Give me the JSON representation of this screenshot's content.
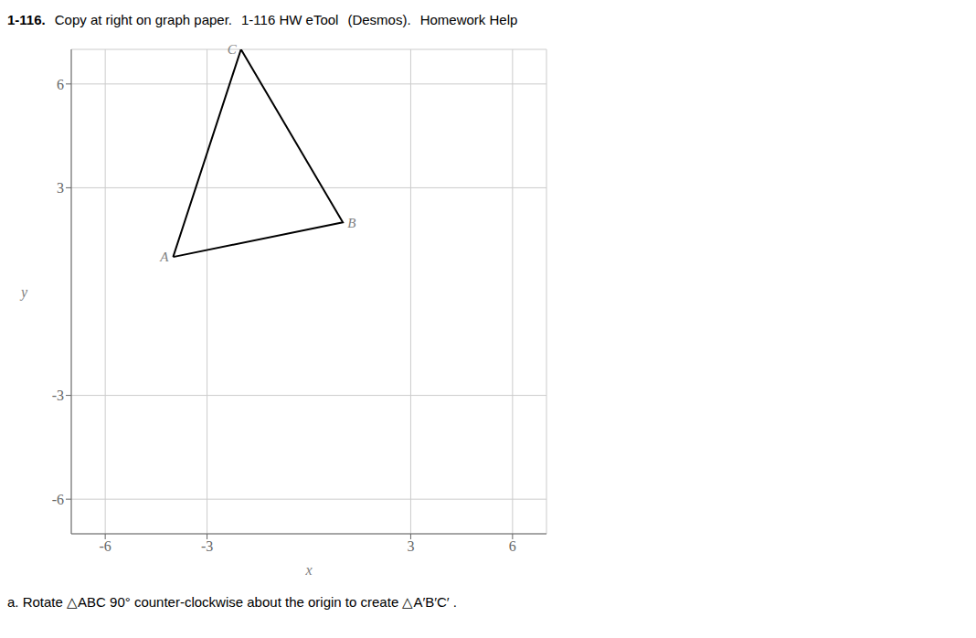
{
  "chart_data": {
    "type": "line",
    "header": [
      "1-116.",
      "Copy  at right on graph paper.",
      "1-116 HW eTool",
      "(Desmos).",
      "Homework Help"
    ],
    "annotation": "a.  Rotate △ABC 90° counter-clockwise about the origin to create △A′B′C′ .",
    "xlabel": "x",
    "ylabel": "y",
    "x": [
      -4,
      1,
      -2,
      -4
    ],
    "values": [
      1,
      2,
      7,
      1
    ],
    "color": "#000000",
    "xlim": [
      -7,
      7
    ],
    "ylim": [
      -7,
      7
    ],
    "xticks": [
      -6,
      -3,
      3,
      6
    ],
    "yticks": [
      -6,
      -3,
      3,
      6
    ],
    "grid": true,
    "annotations": [
      {
        "text": "A",
        "x": -4,
        "y": 1
      },
      {
        "text": "B",
        "x": 1,
        "y": 2
      },
      {
        "text": "C",
        "x": -2,
        "y": 7
      }
    ]
  }
}
